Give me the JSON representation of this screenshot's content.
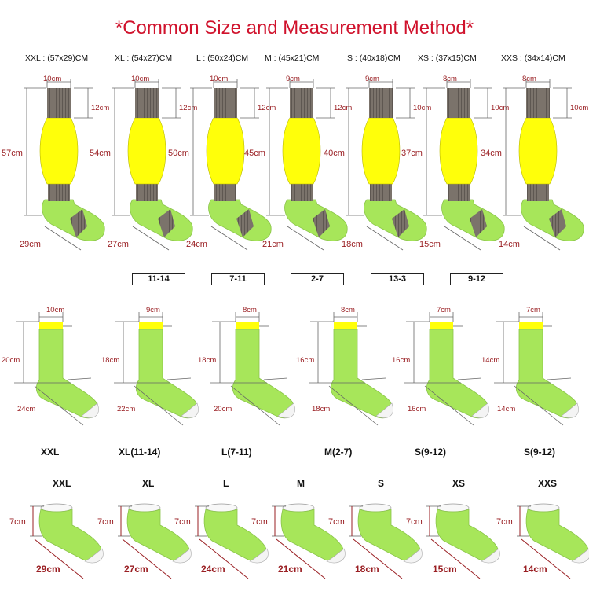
{
  "title": "*Common Size and Measurement Method*",
  "colors": {
    "title": "#d0122c",
    "sock_body": "#ffff0a",
    "sock_foot": "#a7e65a",
    "cuff": "#7b736b",
    "measure_text": "#9a1f23"
  },
  "row1": {
    "headers": [
      "XXL : (57x29)CM",
      "XL : (54x27)CM",
      "L : (50x24)CM",
      "M : (45x21)CM",
      "S : (40x18)CM",
      "XS : (37x15)CM",
      "XXS : (34x14)CM"
    ],
    "items": [
      {
        "width": "10cm",
        "top": "12cm",
        "length": "57cm",
        "foot": "29cm"
      },
      {
        "width": "10cm",
        "top": "12cm",
        "length": "54cm",
        "foot": "27cm"
      },
      {
        "width": "10cm",
        "top": "12cm",
        "length": "50cm",
        "foot": "24cm"
      },
      {
        "width": "9cm",
        "top": "12cm",
        "length": "45cm",
        "foot": "21cm"
      },
      {
        "width": "9cm",
        "top": "10cm",
        "length": "40cm",
        "foot": "18cm"
      },
      {
        "width": "8cm",
        "top": "10cm",
        "length": "37cm",
        "foot": "15cm"
      },
      {
        "width": "8cm",
        "top": "10cm",
        "length": "34cm",
        "foot": "14cm"
      }
    ]
  },
  "size_tiles": [
    "11-14",
    "7-11",
    "2-7",
    "13-3",
    "9-12"
  ],
  "row2": {
    "items": [
      {
        "label": "XXL",
        "width": "10cm",
        "length": "20cm",
        "foot": "24cm"
      },
      {
        "label": "XL(11-14)",
        "width": "9cm",
        "length": "18cm",
        "foot": "22cm"
      },
      {
        "label": "L(7-11)",
        "width": "8cm",
        "length": "18cm",
        "foot": "20cm"
      },
      {
        "label": "M(2-7)",
        "width": "8cm",
        "length": "16cm",
        "foot": "18cm"
      },
      {
        "label": "S(9-12)",
        "width": "7cm",
        "length": "16cm",
        "foot": "16cm"
      },
      {
        "label": "S(9-12)",
        "width": "7cm",
        "length": "14cm",
        "foot": "14cm"
      }
    ]
  },
  "row3": {
    "items": [
      {
        "label": "XXL",
        "height": "7cm",
        "foot": "29cm"
      },
      {
        "label": "XL",
        "height": "7cm",
        "foot": "27cm"
      },
      {
        "label": "L",
        "height": "7cm",
        "foot": "24cm"
      },
      {
        "label": "M",
        "height": "7cm",
        "foot": "21cm"
      },
      {
        "label": "S",
        "height": "7cm",
        "foot": "18cm"
      },
      {
        "label": "XS",
        "height": "7cm",
        "foot": "15cm"
      },
      {
        "label": "XXS",
        "height": "7cm",
        "foot": "14cm"
      }
    ]
  }
}
